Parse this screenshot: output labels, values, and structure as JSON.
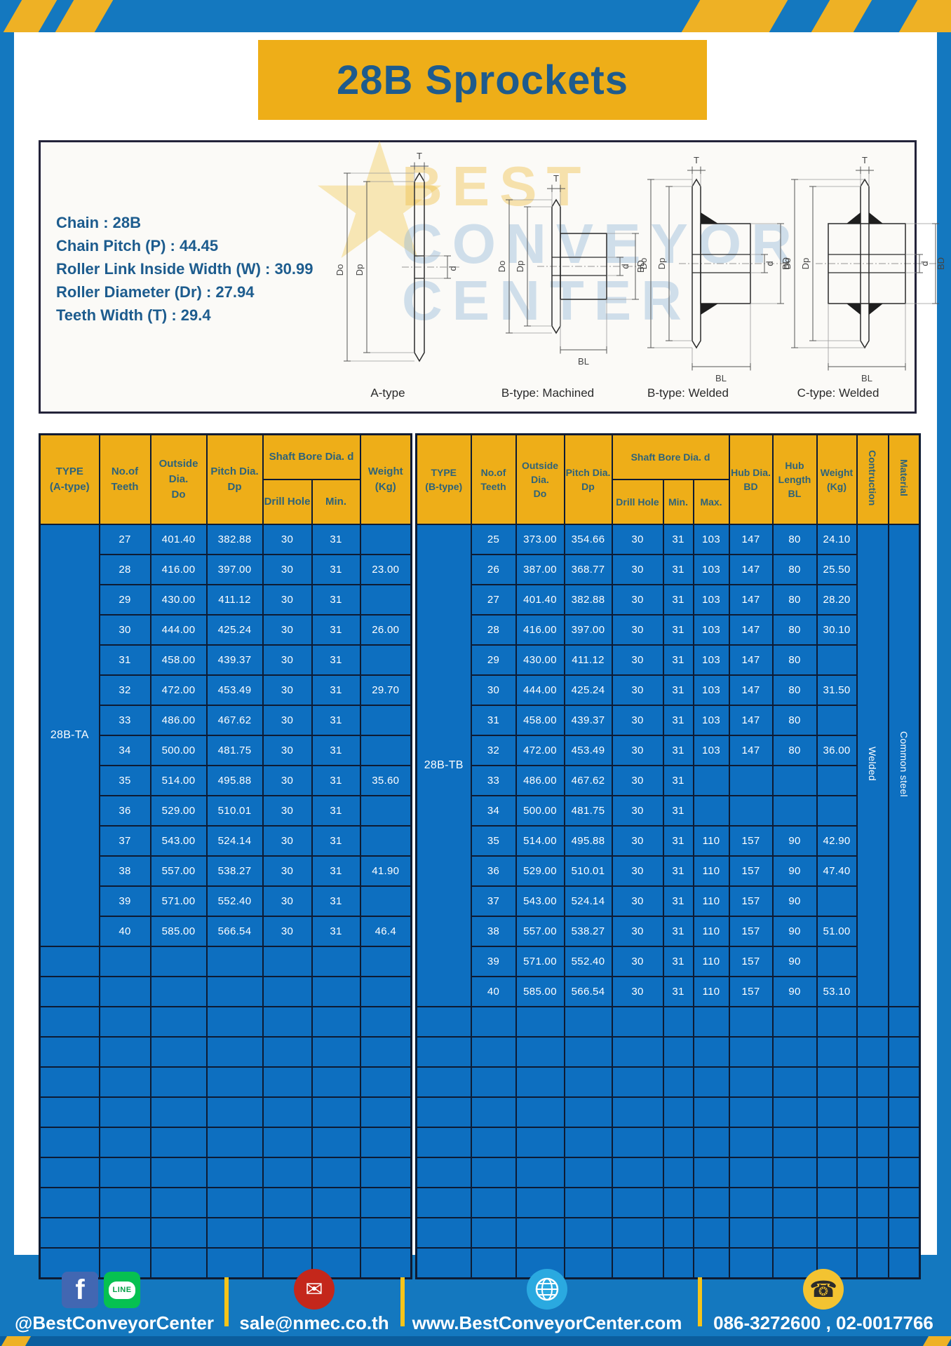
{
  "page": {
    "title": "28B Sprockets"
  },
  "specs": {
    "lines": [
      "Chain : 28B",
      "Chain Pitch (P) : 44.45",
      "Roller Link Inside Width (W) : 30.99",
      "Roller Diameter (Dr) : 27.94",
      "Teeth Width (T) : 29.4"
    ]
  },
  "diagram": {
    "captions": [
      "A-type",
      "B-type: Machined",
      "B-type: Welded",
      "C-type: Welded"
    ],
    "labels": {
      "t": "T",
      "outside": "Do",
      "pitch": "Dp",
      "bore": "d",
      "hub_dia": "BD",
      "hub_len": "BL"
    },
    "watermark": [
      "BEST",
      "CONVEYOR",
      "CENTER"
    ],
    "watermark_star": "★"
  },
  "tables": {
    "left": {
      "headers": {
        "type": "TYPE\n(A-type)",
        "teeth": "No.of\nTeeth",
        "outside": "Outside\nDia.\nDo",
        "pitch": "Pitch Dia.\nDp",
        "shaft_bore": "Shaft Bore Dia. d",
        "drill": "Drill Hole",
        "min": "Min.",
        "weight": "Weight\n(Kg)"
      },
      "type_label": "28B-TA",
      "rows": [
        [
          "27",
          "401.40",
          "382.88",
          "30",
          "31",
          ""
        ],
        [
          "28",
          "416.00",
          "397.00",
          "30",
          "31",
          "23.00"
        ],
        [
          "29",
          "430.00",
          "411.12",
          "30",
          "31",
          ""
        ],
        [
          "30",
          "444.00",
          "425.24",
          "30",
          "31",
          "26.00"
        ],
        [
          "31",
          "458.00",
          "439.37",
          "30",
          "31",
          ""
        ],
        [
          "32",
          "472.00",
          "453.49",
          "30",
          "31",
          "29.70"
        ],
        [
          "33",
          "486.00",
          "467.62",
          "30",
          "31",
          ""
        ],
        [
          "34",
          "500.00",
          "481.75",
          "30",
          "31",
          ""
        ],
        [
          "35",
          "514.00",
          "495.88",
          "30",
          "31",
          "35.60"
        ],
        [
          "36",
          "529.00",
          "510.01",
          "30",
          "31",
          ""
        ],
        [
          "37",
          "543.00",
          "524.14",
          "30",
          "31",
          ""
        ],
        [
          "38",
          "557.00",
          "538.27",
          "30",
          "31",
          "41.90"
        ],
        [
          "39",
          "571.00",
          "552.40",
          "30",
          "31",
          ""
        ],
        [
          "40",
          "585.00",
          "566.54",
          "30",
          "31",
          "46.4"
        ]
      ],
      "empty_rows": 11
    },
    "right": {
      "headers": {
        "type": "TYPE\n(B-type)",
        "teeth": "No.of\nTeeth",
        "outside": "Outside\nDia.\nDo",
        "pitch": "Pitch Dia.\nDp",
        "shaft_bore": "Shaft Bore Dia. d",
        "drill": "Drill Hole",
        "min": "Min.",
        "max": "Max.",
        "hub_dia": "Hub Dia.\nBD",
        "hub_len": "Hub\nLength\nBL",
        "weight": "Weight\n(Kg)",
        "contruction": "Contruction",
        "material": "Material"
      },
      "type_label": "28B-TB",
      "construction_value": "Welded",
      "material_value": "Common steel",
      "rows": [
        [
          "25",
          "373.00",
          "354.66",
          "30",
          "31",
          "103",
          "147",
          "80",
          "24.10"
        ],
        [
          "26",
          "387.00",
          "368.77",
          "30",
          "31",
          "103",
          "147",
          "80",
          "25.50"
        ],
        [
          "27",
          "401.40",
          "382.88",
          "30",
          "31",
          "103",
          "147",
          "80",
          "28.20"
        ],
        [
          "28",
          "416.00",
          "397.00",
          "30",
          "31",
          "103",
          "147",
          "80",
          "30.10"
        ],
        [
          "29",
          "430.00",
          "411.12",
          "30",
          "31",
          "103",
          "147",
          "80",
          ""
        ],
        [
          "30",
          "444.00",
          "425.24",
          "30",
          "31",
          "103",
          "147",
          "80",
          "31.50"
        ],
        [
          "31",
          "458.00",
          "439.37",
          "30",
          "31",
          "103",
          "147",
          "80",
          ""
        ],
        [
          "32",
          "472.00",
          "453.49",
          "30",
          "31",
          "103",
          "147",
          "80",
          "36.00"
        ],
        [
          "33",
          "486.00",
          "467.62",
          "30",
          "31",
          "",
          "",
          "",
          ""
        ],
        [
          "34",
          "500.00",
          "481.75",
          "30",
          "31",
          "",
          "",
          "",
          ""
        ],
        [
          "35",
          "514.00",
          "495.88",
          "30",
          "31",
          "110",
          "157",
          "90",
          "42.90"
        ],
        [
          "36",
          "529.00",
          "510.01",
          "30",
          "31",
          "110",
          "157",
          "90",
          "47.40"
        ],
        [
          "37",
          "543.00",
          "524.14",
          "30",
          "31",
          "110",
          "157",
          "90",
          ""
        ],
        [
          "38",
          "557.00",
          "538.27",
          "30",
          "31",
          "110",
          "157",
          "90",
          "51.00"
        ],
        [
          "39",
          "571.00",
          "552.40",
          "30",
          "31",
          "110",
          "157",
          "90",
          ""
        ],
        [
          "40",
          "585.00",
          "566.54",
          "30",
          "31",
          "110",
          "157",
          "90",
          "53.10"
        ]
      ],
      "empty_rows": 9
    }
  },
  "footer": {
    "facebook_handle": "@BestConveyorCenter",
    "facebook_letter": "f",
    "line_text": "LINE",
    "email": "sale@nmec.co.th",
    "website": "www.BestConveyorCenter.com",
    "phones": "086-3272600 , 02-0017766"
  },
  "colors": {
    "frame_blue": "#1478bf",
    "accent_yellow": "#eeae18",
    "table_blue": "#0d6fc0",
    "table_border": "#0d1b33",
    "header_text": "#2e6379",
    "title_text": "#1e5b8d",
    "footer_strip": "#0b5e9e"
  }
}
